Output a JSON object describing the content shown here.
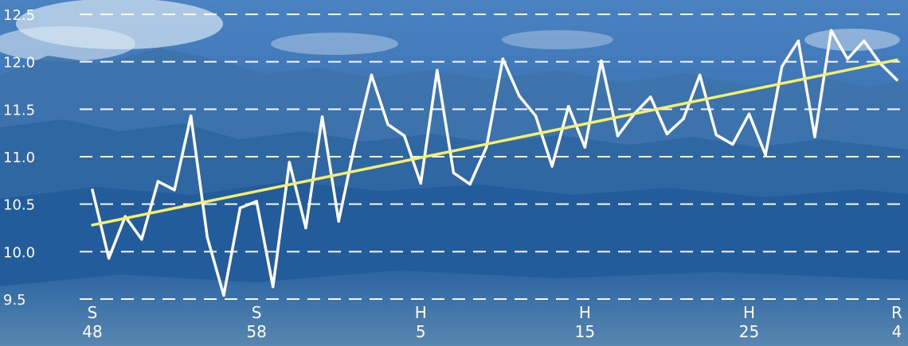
{
  "chart_data": {
    "type": "line",
    "title": "",
    "xlabel": "",
    "ylabel": "",
    "ylim": [
      9.5,
      12.5
    ],
    "yticks": [
      "9.5",
      "10.0",
      "10.5",
      "11.0",
      "11.5",
      "12.0",
      "12.5"
    ],
    "grid": true,
    "x_ticks": [
      {
        "era": "S",
        "year": "48"
      },
      {
        "era": "S",
        "year": "58"
      },
      {
        "era": "H",
        "year": "5"
      },
      {
        "era": "H",
        "year": "15"
      },
      {
        "era": "H",
        "year": "25"
      },
      {
        "era": "R",
        "year": "4"
      }
    ],
    "x_start_year": 1973,
    "x_end_year": 2022,
    "series": [
      {
        "values": [
          10.65,
          9.93,
          10.37,
          10.13,
          10.74,
          10.65,
          11.43,
          10.15,
          9.54,
          10.46,
          10.53,
          9.63,
          10.94,
          10.25,
          11.42,
          10.32,
          11.14,
          11.86,
          11.34,
          11.22,
          10.72,
          11.91,
          10.83,
          10.71,
          11.1,
          12.03,
          11.64,
          11.43,
          10.9,
          11.53,
          11.1,
          12.01,
          11.22,
          11.45,
          11.63,
          11.24,
          11.4,
          11.86,
          11.23,
          11.13,
          11.45,
          11.02,
          11.95,
          12.22,
          11.21,
          12.33,
          12.03,
          12.22,
          11.98,
          11.81
        ],
        "color": "#ffffff"
      },
      {
        "type": "trendline",
        "values_start": 10.28,
        "values_end": 12.02,
        "color": "#f3ee6e"
      }
    ]
  },
  "colors": {
    "sky_top": "#3e77b8",
    "sky_mid": "#2f6aa8",
    "mountain_far": "#3a74ad",
    "mountain_mid": "#2a62a0",
    "mountain_near": "#1f5795",
    "valley": "#4b7fae",
    "grid": "#ffffff",
    "text": "#ffffff"
  }
}
